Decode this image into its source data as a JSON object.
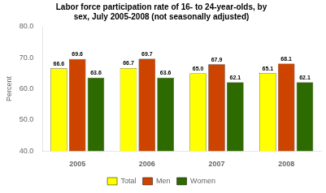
{
  "chart_data": {
    "type": "bar",
    "title": "Labor force participation rate of 16- to 24-year-olds, by\nsex, July 2005-2008 (not seasonally adjusted)",
    "categories": [
      "2005",
      "2006",
      "2007",
      "2008"
    ],
    "series": [
      {
        "name": "Total",
        "color": "#FFFF00",
        "values": [
          66.6,
          66.7,
          65.0,
          65.1
        ],
        "value_labels": [
          "66.6",
          "66.7",
          "65.0",
          "65.1"
        ]
      },
      {
        "name": "Men",
        "color": "#CC4400",
        "values": [
          69.6,
          69.7,
          67.9,
          68.1
        ],
        "value_labels": [
          "69.6",
          "69.7",
          "67.9",
          "68.1"
        ]
      },
      {
        "name": "Women",
        "color": "#2D6A00",
        "values": [
          63.6,
          63.6,
          62.1,
          62.1
        ],
        "value_labels": [
          "63.6",
          "63.6",
          "62.1",
          "62.1"
        ]
      }
    ],
    "ylabel": "Percent",
    "ylim": [
      40.0,
      80.0
    ],
    "yticks": [
      {
        "value": 40.0,
        "label": "40.0"
      },
      {
        "value": 50.0,
        "label": "50.0"
      },
      {
        "value": 60.0,
        "label": "60.0"
      },
      {
        "value": 70.0,
        "label": "70.0"
      },
      {
        "value": 80.0,
        "label": "80.0"
      }
    ],
    "grid": false,
    "legend": "bottom",
    "data_labels": true
  }
}
